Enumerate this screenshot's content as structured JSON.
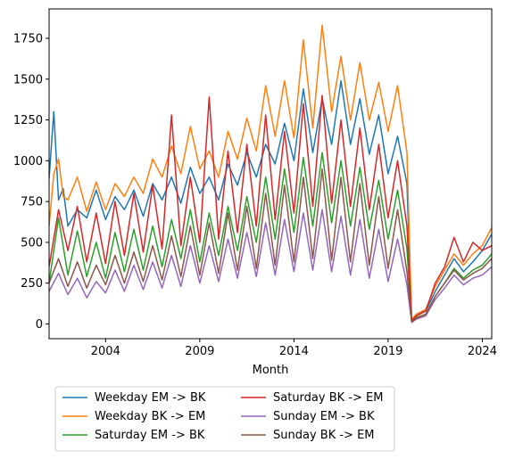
{
  "chart_data": {
    "type": "line",
    "title": "",
    "xlabel": "Month",
    "ylabel": "",
    "xlim": [
      2001.0,
      2024.5
    ],
    "ylim": [
      -90,
      1930
    ],
    "x_ticks": [
      2004,
      2009,
      2014,
      2019,
      2024
    ],
    "x_tick_labels": [
      "2004",
      "2009",
      "2014",
      "2019",
      "2024"
    ],
    "y_ticks": [
      0,
      250,
      500,
      750,
      1000,
      1250,
      1500,
      1750
    ],
    "y_tick_labels": [
      "0",
      "250",
      "500",
      "750",
      "1000",
      "1250",
      "1500",
      "1750"
    ],
    "grid": false,
    "legend_position": "below",
    "series": [
      {
        "name": "Weekday EM -> BK",
        "color": "#1f77b4",
        "x": [
          2001.0,
          2001.25,
          2001.5,
          2001.75,
          2002.0,
          2002.5,
          2003.0,
          2003.5,
          2004.0,
          2004.5,
          2005.0,
          2005.5,
          2006.0,
          2006.5,
          2007.0,
          2007.5,
          2008.0,
          2008.5,
          2009.0,
          2009.5,
          2010.0,
          2010.5,
          2011.0,
          2011.5,
          2012.0,
          2012.5,
          2013.0,
          2013.5,
          2014.0,
          2014.5,
          2015.0,
          2015.5,
          2016.0,
          2016.5,
          2017.0,
          2017.5,
          2018.0,
          2018.5,
          2019.0,
          2019.5,
          2020.0,
          2020.25,
          2020.5,
          2021.0,
          2021.5,
          2022.0,
          2022.5,
          2023.0,
          2023.5,
          2024.0,
          2024.5
        ],
        "y": [
          890,
          1300,
          760,
          830,
          600,
          700,
          650,
          820,
          640,
          780,
          700,
          820,
          660,
          860,
          760,
          900,
          740,
          960,
          800,
          900,
          760,
          980,
          850,
          1050,
          900,
          1100,
          980,
          1230,
          1000,
          1440,
          1050,
          1380,
          1100,
          1490,
          1100,
          1380,
          1040,
          1280,
          920,
          1150,
          860,
          20,
          60,
          80,
          200,
          300,
          400,
          320,
          380,
          450,
          550
        ]
      },
      {
        "name": "Weekday BK -> EM",
        "color": "#ff7f0e",
        "x": [
          2001.0,
          2001.25,
          2001.5,
          2001.75,
          2002.0,
          2002.5,
          2003.0,
          2003.5,
          2004.0,
          2004.5,
          2005.0,
          2005.5,
          2006.0,
          2006.5,
          2007.0,
          2007.5,
          2008.0,
          2008.5,
          2009.0,
          2009.5,
          2010.0,
          2010.5,
          2011.0,
          2011.5,
          2012.0,
          2012.5,
          2013.0,
          2013.5,
          2014.0,
          2014.5,
          2015.0,
          2015.5,
          2016.0,
          2016.5,
          2017.0,
          2017.5,
          2018.0,
          2018.5,
          2019.0,
          2019.5,
          2020.0,
          2020.25,
          2020.5,
          2021.0,
          2021.5,
          2022.0,
          2022.5,
          2023.0,
          2023.5,
          2024.0,
          2024.5
        ],
        "y": [
          600,
          920,
          1010,
          780,
          760,
          900,
          690,
          870,
          700,
          860,
          780,
          900,
          800,
          1010,
          900,
          1090,
          920,
          1210,
          950,
          1060,
          900,
          1180,
          1010,
          1260,
          1060,
          1460,
          1150,
          1490,
          1140,
          1740,
          1200,
          1830,
          1300,
          1640,
          1250,
          1600,
          1250,
          1480,
          1180,
          1460,
          1050,
          30,
          60,
          90,
          230,
          330,
          430,
          360,
          430,
          480,
          590
        ]
      },
      {
        "name": "Saturday EM -> BK",
        "color": "#2ca02c",
        "x": [
          2001.0,
          2001.5,
          2002.0,
          2002.5,
          2003.0,
          2003.5,
          2004.0,
          2004.5,
          2005.0,
          2005.5,
          2006.0,
          2006.5,
          2007.0,
          2007.5,
          2008.0,
          2008.5,
          2009.0,
          2009.5,
          2010.0,
          2010.5,
          2011.0,
          2011.5,
          2012.0,
          2012.5,
          2013.0,
          2013.5,
          2014.0,
          2014.5,
          2015.0,
          2015.5,
          2016.0,
          2016.5,
          2017.0,
          2017.5,
          2018.0,
          2018.5,
          2019.0,
          2019.5,
          2020.0,
          2020.25,
          2020.5,
          2021.0,
          2021.5,
          2022.0,
          2022.5,
          2023.0,
          2023.5,
          2024.0,
          2024.5
        ],
        "y": [
          250,
          650,
          300,
          570,
          290,
          500,
          280,
          560,
          320,
          580,
          330,
          600,
          350,
          640,
          400,
          700,
          380,
          680,
          420,
          720,
          450,
          780,
          500,
          900,
          520,
          950,
          560,
          1020,
          600,
          1050,
          620,
          1000,
          600,
          960,
          580,
          880,
          520,
          820,
          460,
          15,
          40,
          60,
          170,
          250,
          340,
          280,
          330,
          360,
          430
        ]
      },
      {
        "name": "Saturday BK -> EM",
        "color": "#d62728",
        "x": [
          2001.0,
          2001.5,
          2002.0,
          2002.5,
          2003.0,
          2003.5,
          2004.0,
          2004.5,
          2005.0,
          2005.5,
          2006.0,
          2006.5,
          2007.0,
          2007.5,
          2008.0,
          2008.5,
          2009.0,
          2009.5,
          2010.0,
          2010.5,
          2011.0,
          2011.5,
          2012.0,
          2012.5,
          2013.0,
          2013.5,
          2014.0,
          2014.5,
          2015.0,
          2015.5,
          2016.0,
          2016.5,
          2017.0,
          2017.5,
          2018.0,
          2018.5,
          2019.0,
          2019.5,
          2020.0,
          2020.25,
          2020.5,
          2021.0,
          2021.5,
          2022.0,
          2022.5,
          2023.0,
          2023.5,
          2024.0,
          2024.5
        ],
        "y": [
          350,
          700,
          450,
          720,
          380,
          680,
          370,
          750,
          420,
          800,
          440,
          850,
          460,
          1280,
          480,
          900,
          500,
          1390,
          520,
          1060,
          560,
          1100,
          600,
          1280,
          640,
          1180,
          680,
          1350,
          720,
          1400,
          740,
          1250,
          720,
          1200,
          700,
          1100,
          650,
          1000,
          600,
          20,
          50,
          80,
          250,
          350,
          530,
          380,
          500,
          450,
          480
        ]
      },
      {
        "name": "Sunday EM -> BK",
        "color": "#9467bd",
        "x": [
          2001.0,
          2001.5,
          2002.0,
          2002.5,
          2003.0,
          2003.5,
          2004.0,
          2004.5,
          2005.0,
          2005.5,
          2006.0,
          2006.5,
          2007.0,
          2007.5,
          2008.0,
          2008.5,
          2009.0,
          2009.5,
          2010.0,
          2010.5,
          2011.0,
          2011.5,
          2012.0,
          2012.5,
          2013.0,
          2013.5,
          2014.0,
          2014.5,
          2015.0,
          2015.5,
          2016.0,
          2016.5,
          2017.0,
          2017.5,
          2018.0,
          2018.5,
          2019.0,
          2019.5,
          2020.0,
          2020.25,
          2020.5,
          2021.0,
          2021.5,
          2022.0,
          2022.5,
          2023.0,
          2023.5,
          2024.0,
          2024.5
        ],
        "y": [
          200,
          310,
          180,
          280,
          160,
          260,
          190,
          330,
          200,
          360,
          210,
          380,
          220,
          420,
          230,
          480,
          250,
          480,
          260,
          520,
          280,
          560,
          290,
          620,
          300,
          640,
          320,
          680,
          330,
          700,
          320,
          660,
          300,
          640,
          280,
          580,
          260,
          520,
          240,
          10,
          30,
          50,
          150,
          220,
          300,
          240,
          280,
          300,
          350
        ]
      },
      {
        "name": "Sunday BK -> EM",
        "color": "#8c564b",
        "x": [
          2001.0,
          2001.5,
          2002.0,
          2002.5,
          2003.0,
          2003.5,
          2004.0,
          2004.5,
          2005.0,
          2005.5,
          2006.0,
          2006.5,
          2007.0,
          2007.5,
          2008.0,
          2008.5,
          2009.0,
          2009.5,
          2010.0,
          2010.5,
          2011.0,
          2011.5,
          2012.0,
          2012.5,
          2013.0,
          2013.5,
          2014.0,
          2014.5,
          2015.0,
          2015.5,
          2016.0,
          2016.5,
          2017.0,
          2017.5,
          2018.0,
          2018.5,
          2019.0,
          2019.5,
          2020.0,
          2020.25,
          2020.5,
          2021.0,
          2021.5,
          2022.0,
          2022.5,
          2023.0,
          2023.5,
          2024.0,
          2024.5
        ],
        "y": [
          250,
          400,
          230,
          380,
          220,
          360,
          240,
          420,
          250,
          440,
          260,
          480,
          270,
          540,
          290,
          600,
          300,
          620,
          310,
          680,
          330,
          720,
          340,
          800,
          360,
          850,
          380,
          900,
          400,
          950,
          390,
          900,
          380,
          860,
          360,
          780,
          340,
          700,
          320,
          12,
          35,
          60,
          170,
          250,
          330,
          270,
          310,
          340,
          400
        ]
      }
    ]
  }
}
